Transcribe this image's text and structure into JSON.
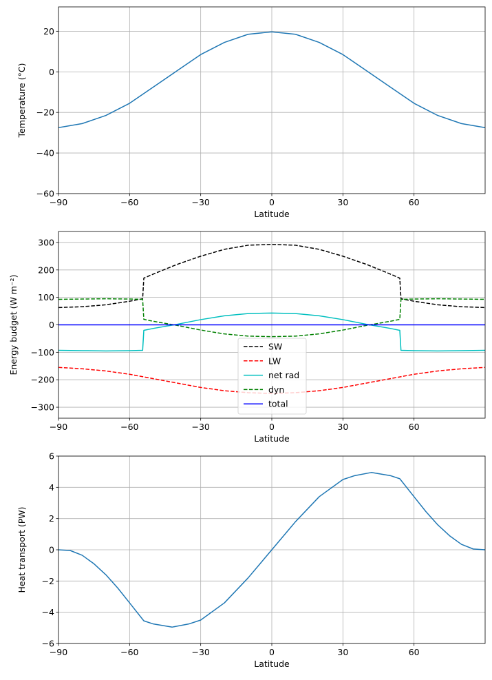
{
  "chart_data": [
    {
      "type": "line",
      "xlabel": "Latitude",
      "ylabel": "Temperature (°C)",
      "xlim": [
        -90,
        90
      ],
      "ylim": [
        -60,
        32
      ],
      "xticks": [
        -90,
        -60,
        -30,
        0,
        30,
        60
      ],
      "xtick_labels": [
        "−90",
        "−60",
        "−30",
        "0",
        "30",
        "60"
      ],
      "yticks": [
        -60,
        -40,
        -20,
        0,
        20
      ],
      "ytick_labels": [
        "−60",
        "−40",
        "−20",
        "0",
        "20"
      ],
      "grid": true,
      "series": [
        {
          "color": "#1f77b4",
          "dash": "solid",
          "x": [
            -90,
            -80,
            -70,
            -60,
            -55,
            -50,
            -40,
            -30,
            -20,
            -10,
            0,
            10,
            20,
            30,
            40,
            50,
            55,
            60,
            70,
            80,
            90
          ],
          "y": [
            -27.5,
            -25.5,
            -21.5,
            -15.5,
            -11.5,
            -7.5,
            0.5,
            8.5,
            14.5,
            18.5,
            19.7,
            18.5,
            14.5,
            8.5,
            0.5,
            -7.5,
            -11.5,
            -15.5,
            -21.5,
            -25.5,
            -27.5
          ]
        }
      ]
    },
    {
      "type": "line",
      "xlabel": "Latitude",
      "ylabel": "Energy budget (W m⁻²)",
      "xlim": [
        -90,
        90
      ],
      "ylim": [
        -340,
        340
      ],
      "xticks": [
        -90,
        -60,
        -30,
        0,
        30,
        60
      ],
      "xtick_labels": [
        "−90",
        "−60",
        "−30",
        "0",
        "30",
        "60"
      ],
      "yticks": [
        -300,
        -200,
        -100,
        0,
        100,
        200,
        300
      ],
      "ytick_labels": [
        "−300",
        "−200",
        "−100",
        "0",
        "100",
        "200",
        "300"
      ],
      "grid": true,
      "legend_position": "lower center",
      "series": [
        {
          "name": "SW",
          "color": "#000000",
          "dash": "dashed",
          "x": [
            -90,
            -80,
            -70,
            -60,
            -54.5,
            -54,
            -50,
            -40,
            -30,
            -20,
            -10,
            0,
            10,
            20,
            30,
            40,
            50,
            54,
            54.5,
            60,
            70,
            80,
            90
          ],
          "y": [
            63,
            66,
            73,
            86,
            95,
            170,
            185,
            220,
            250,
            275,
            290,
            293,
            290,
            275,
            250,
            220,
            185,
            170,
            95,
            86,
            73,
            66,
            63
          ]
        },
        {
          "name": "LW",
          "color": "#ff0000",
          "dash": "dashed",
          "x": [
            -90,
            -80,
            -70,
            -60,
            -50,
            -40,
            -30,
            -20,
            -10,
            0,
            10,
            20,
            30,
            40,
            50,
            60,
            70,
            80,
            90
          ],
          "y": [
            -155,
            -160,
            -168,
            -180,
            -196,
            -212,
            -228,
            -240,
            -247,
            -250,
            -247,
            -240,
            -228,
            -212,
            -196,
            -180,
            -168,
            -160,
            -155
          ]
        },
        {
          "name": "net rad",
          "color": "#00bfbf",
          "dash": "solid",
          "x": [
            -90,
            -80,
            -70,
            -60,
            -54.5,
            -54,
            -50,
            -40,
            -30,
            -20,
            -10,
            0,
            10,
            20,
            30,
            40,
            50,
            54,
            54.5,
            60,
            70,
            80,
            90
          ],
          "y": [
            -93,
            -94,
            -95,
            -94,
            -93,
            -20,
            -13,
            2,
            19,
            33,
            41,
            43,
            41,
            33,
            19,
            2,
            -13,
            -20,
            -93,
            -94,
            -95,
            -94,
            -93
          ]
        },
        {
          "name": "dyn",
          "color": "#008000",
          "dash": "dashed",
          "x": [
            -90,
            -80,
            -70,
            -60,
            -54.5,
            -54,
            -50,
            -40,
            -30,
            -20,
            -10,
            0,
            10,
            20,
            30,
            40,
            50,
            54,
            54.5,
            60,
            70,
            80,
            90
          ],
          "y": [
            93,
            94,
            95,
            94,
            93,
            20,
            13,
            -2,
            -19,
            -33,
            -41,
            -43,
            -41,
            -33,
            -19,
            -2,
            13,
            20,
            93,
            94,
            95,
            94,
            93
          ]
        },
        {
          "name": "total",
          "color": "#0000ff",
          "dash": "solid",
          "x": [
            -90,
            90
          ],
          "y": [
            0,
            0
          ]
        }
      ]
    },
    {
      "type": "line",
      "xlabel": "Latitude",
      "ylabel": "Heat transport (PW)",
      "xlim": [
        -90,
        90
      ],
      "ylim": [
        -6,
        6
      ],
      "xticks": [
        -90,
        -60,
        -30,
        0,
        30,
        60
      ],
      "xtick_labels": [
        "−90",
        "−60",
        "−30",
        "0",
        "30",
        "60"
      ],
      "yticks": [
        -6,
        -4,
        -2,
        0,
        2,
        4,
        6
      ],
      "ytick_labels": [
        "−6",
        "−4",
        "−2",
        "0",
        "2",
        "4",
        "6"
      ],
      "grid": true,
      "series": [
        {
          "color": "#1f77b4",
          "dash": "solid",
          "x": [
            -90,
            -85,
            -80,
            -75,
            -70,
            -65,
            -60,
            -54,
            -50,
            -42,
            -35,
            -30,
            -20,
            -10,
            0,
            10,
            20,
            30,
            35,
            42,
            50,
            54,
            60,
            65,
            70,
            75,
            80,
            85,
            90
          ],
          "y": [
            0,
            -0.05,
            -0.35,
            -0.9,
            -1.6,
            -2.45,
            -3.4,
            -4.55,
            -4.75,
            -4.95,
            -4.75,
            -4.5,
            -3.4,
            -1.8,
            0,
            1.8,
            3.4,
            4.5,
            4.75,
            4.95,
            4.75,
            4.55,
            3.4,
            2.45,
            1.6,
            0.9,
            0.35,
            0.05,
            0
          ]
        }
      ]
    }
  ]
}
